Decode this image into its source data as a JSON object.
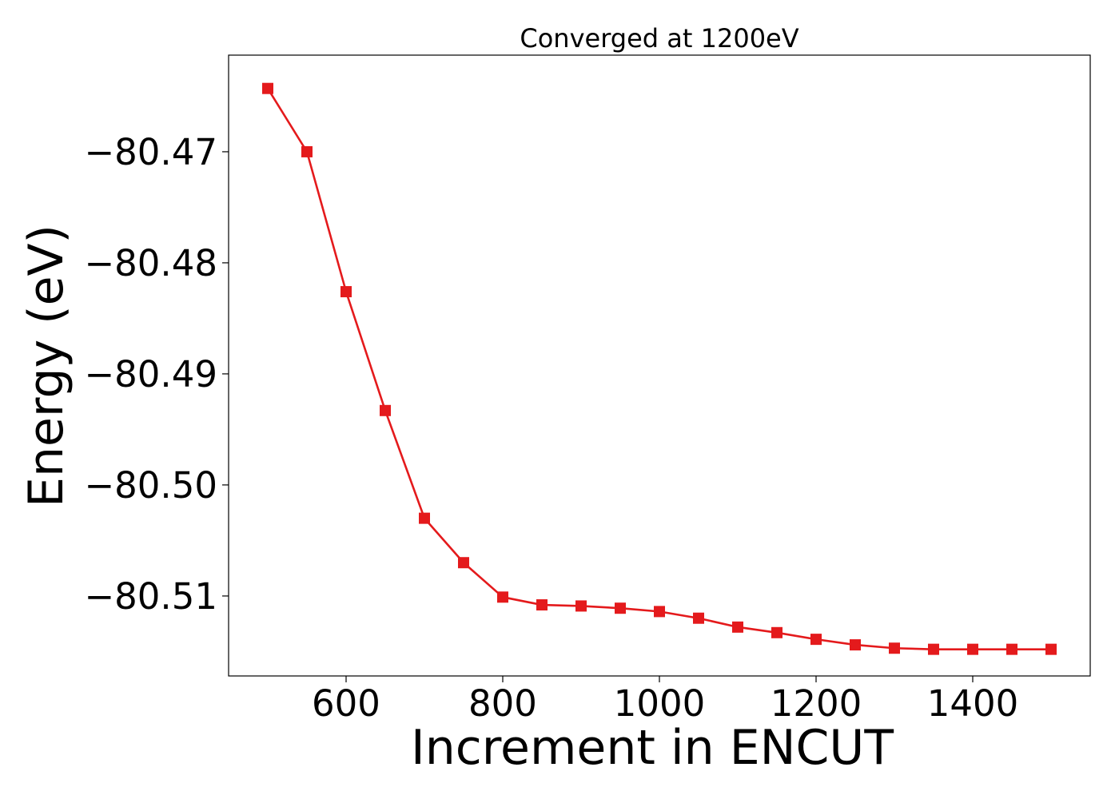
{
  "chart_data": {
    "type": "line",
    "title": "Converged at 1200eV",
    "xlabel": "Increment in ENCUT",
    "ylabel": "Energy (eV)",
    "xlim": [
      450,
      1550
    ],
    "ylim": [
      -80.5172,
      -80.4613
    ],
    "x_ticks": [
      600,
      800,
      1000,
      1200,
      1400
    ],
    "y_ticks": [
      -80.47,
      -80.48,
      -80.49,
      -80.5,
      -80.51
    ],
    "y_tick_labels": [
      "−80.47",
      "−80.48",
      "−80.49",
      "−80.50",
      "−80.51"
    ],
    "grid": false,
    "legend": "none",
    "series": [
      {
        "color": "#e41a1c",
        "marker": "square",
        "x": [
          500,
          550,
          600,
          650,
          700,
          750,
          800,
          850,
          900,
          950,
          1000,
          1050,
          1100,
          1150,
          1200,
          1250,
          1300,
          1350,
          1400,
          1450,
          1500
        ],
        "y": [
          -80.4643,
          -80.47,
          -80.4826,
          -80.4933,
          -80.503,
          -80.507,
          -80.5101,
          -80.5108,
          -80.5109,
          -80.5111,
          -80.5114,
          -80.512,
          -80.5128,
          -80.5133,
          -80.5139,
          -80.5144,
          -80.5147,
          -80.5148,
          -80.5148,
          -80.5148,
          -80.5148
        ]
      }
    ]
  }
}
